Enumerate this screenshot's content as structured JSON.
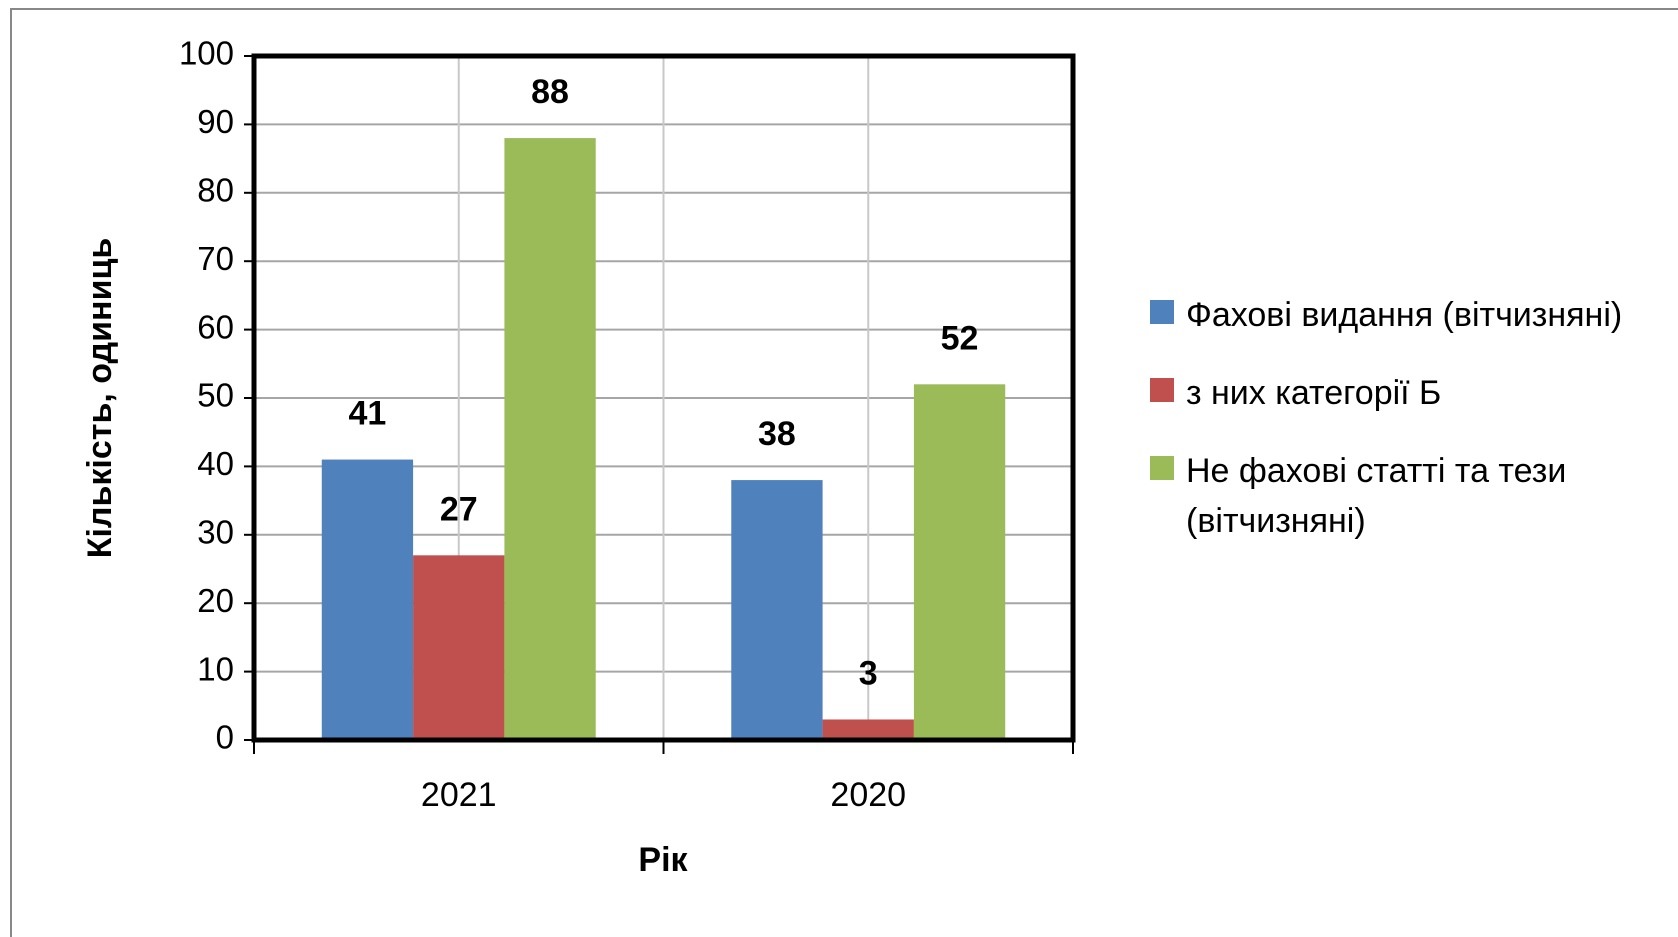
{
  "chart_data": {
    "type": "bar",
    "categories": [
      "2021",
      "2020"
    ],
    "series": [
      {
        "name": "Фахові видання (вітчизняні)",
        "color": "#4f81bd",
        "values": [
          41,
          38
        ]
      },
      {
        "name": "з них категорії Б",
        "color": "#c0504d",
        "values": [
          27,
          3
        ]
      },
      {
        "name": "Не фахові статті та тези (вітчизняні)",
        "color": "#9bbb59",
        "values": [
          88,
          52
        ]
      }
    ],
    "xlabel": "Рік",
    "ylabel": "Кількість, одиниць",
    "ylim": [
      0,
      100
    ],
    "yticks": [
      0,
      10,
      20,
      30,
      40,
      50,
      60,
      70,
      80,
      90,
      100
    ],
    "grid": true,
    "legend": "right"
  }
}
